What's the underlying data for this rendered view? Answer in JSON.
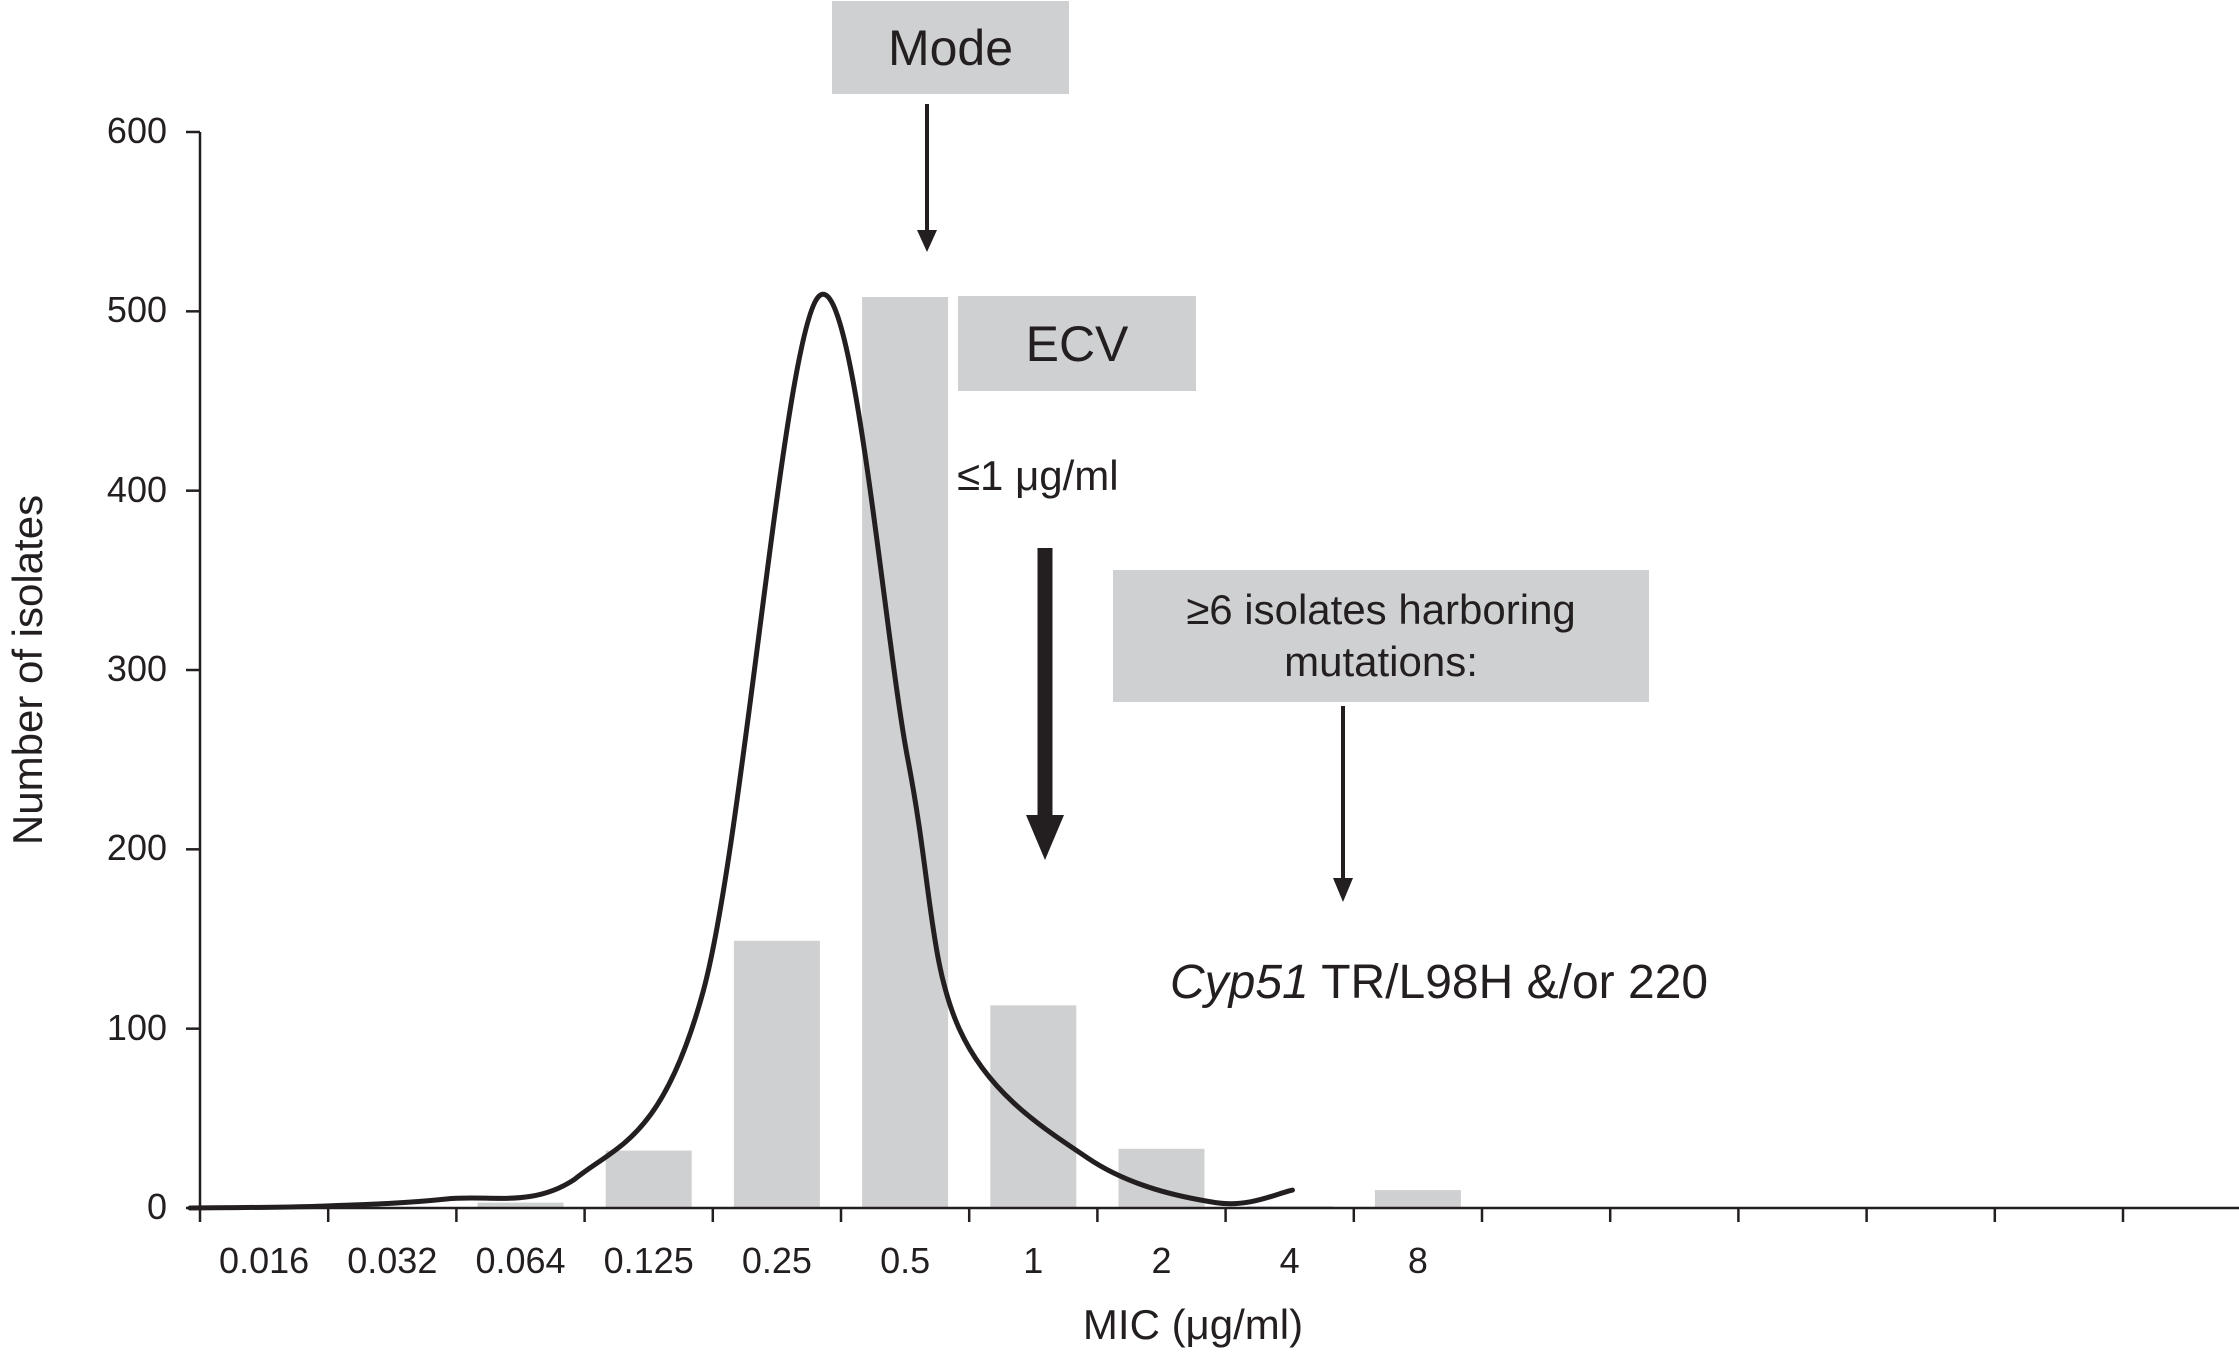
{
  "chart_data": {
    "type": "bar",
    "title": "",
    "xlabel": "MIC (μg/ml)",
    "ylabel": "Number of isolates",
    "ylim": [
      0,
      600
    ],
    "yticks": [
      0,
      100,
      200,
      300,
      400,
      500,
      600
    ],
    "categories": [
      "0.016",
      "0.032",
      "0.064",
      "0.125",
      "0.25",
      "0.5",
      "1",
      "2",
      "4",
      "8"
    ],
    "values": [
      0,
      0,
      3,
      32,
      149,
      508,
      113,
      33,
      1,
      10
    ],
    "extra_x_slots": 6,
    "curve": {
      "description_from_figure": "smoothed distribution line",
      "points": [
        [
          0,
          0
        ],
        [
          1,
          1
        ],
        [
          2,
          5
        ],
        [
          3,
          16
        ],
        [
          4,
          120
        ],
        [
          4.9,
          508
        ],
        [
          5.6,
          250
        ],
        [
          6,
          100
        ],
        [
          7,
          28
        ],
        [
          8,
          3
        ],
        [
          8.6,
          10
        ]
      ]
    },
    "bar_color": "#cfd0d1",
    "curve_color": "#231f20",
    "annotations": {
      "mode_label": "Mode",
      "ecv_label": "ECV",
      "ecv_value": "≤1 μg/ml",
      "mutation_line1": "≥6 isolates harboring",
      "mutation_line2": "mutations:",
      "gene_italic": "Cyp51",
      "gene_rest": " TR/L98H &/or 220"
    }
  }
}
